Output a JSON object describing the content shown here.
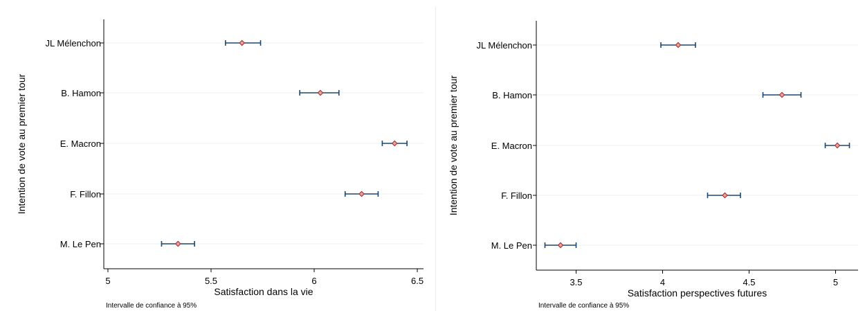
{
  "chart_data": [
    {
      "type": "scatter",
      "title": "",
      "xlabel": "Satisfaction dans la vie",
      "ylabel": "Intention de vote au premier tour",
      "note": "Intervalle de confiance à 95%",
      "xlim": [
        4.98,
        6.53
      ],
      "xticks": [
        "5",
        "5.5",
        "6",
        "6.5"
      ],
      "xtick_values": [
        5,
        5.5,
        6,
        6.5
      ],
      "grid": true,
      "categories": [
        "JL Mélenchon",
        "B. Hamon",
        "E. Macron",
        "F. Fillon",
        "M. Le Pen"
      ],
      "estimate": [
        5.65,
        6.03,
        6.39,
        6.23,
        5.34
      ],
      "ci_low": [
        5.57,
        5.93,
        6.33,
        6.15,
        5.26
      ],
      "ci_high": [
        5.74,
        6.12,
        6.45,
        6.31,
        5.42
      ]
    },
    {
      "type": "scatter",
      "title": "",
      "xlabel": "Satisfaction perspectives futures",
      "ylabel": "Intention de vote au premier tour",
      "note": "Intervalle de confiance à 95%",
      "xlim": [
        3.27,
        5.13
      ],
      "xticks": [
        "3.5",
        "4",
        "4.5",
        "5"
      ],
      "xtick_values": [
        3.5,
        4,
        4.5,
        5
      ],
      "grid": true,
      "categories": [
        "JL Mélenchon",
        "B. Hamon",
        "E. Macron",
        "F. Fillon",
        "M. Le Pen"
      ],
      "estimate": [
        4.09,
        4.69,
        5.01,
        4.36,
        3.41
      ],
      "ci_low": [
        3.99,
        4.58,
        4.94,
        4.26,
        3.32
      ],
      "ci_high": [
        4.19,
        4.8,
        5.08,
        4.45,
        3.5
      ]
    }
  ],
  "colors": {
    "ci_line": "#1a476f",
    "marker_fill": "#e8a0a0",
    "marker_stroke": "#a0302e",
    "grid": "#eaf2f3",
    "axis": "#000000"
  }
}
